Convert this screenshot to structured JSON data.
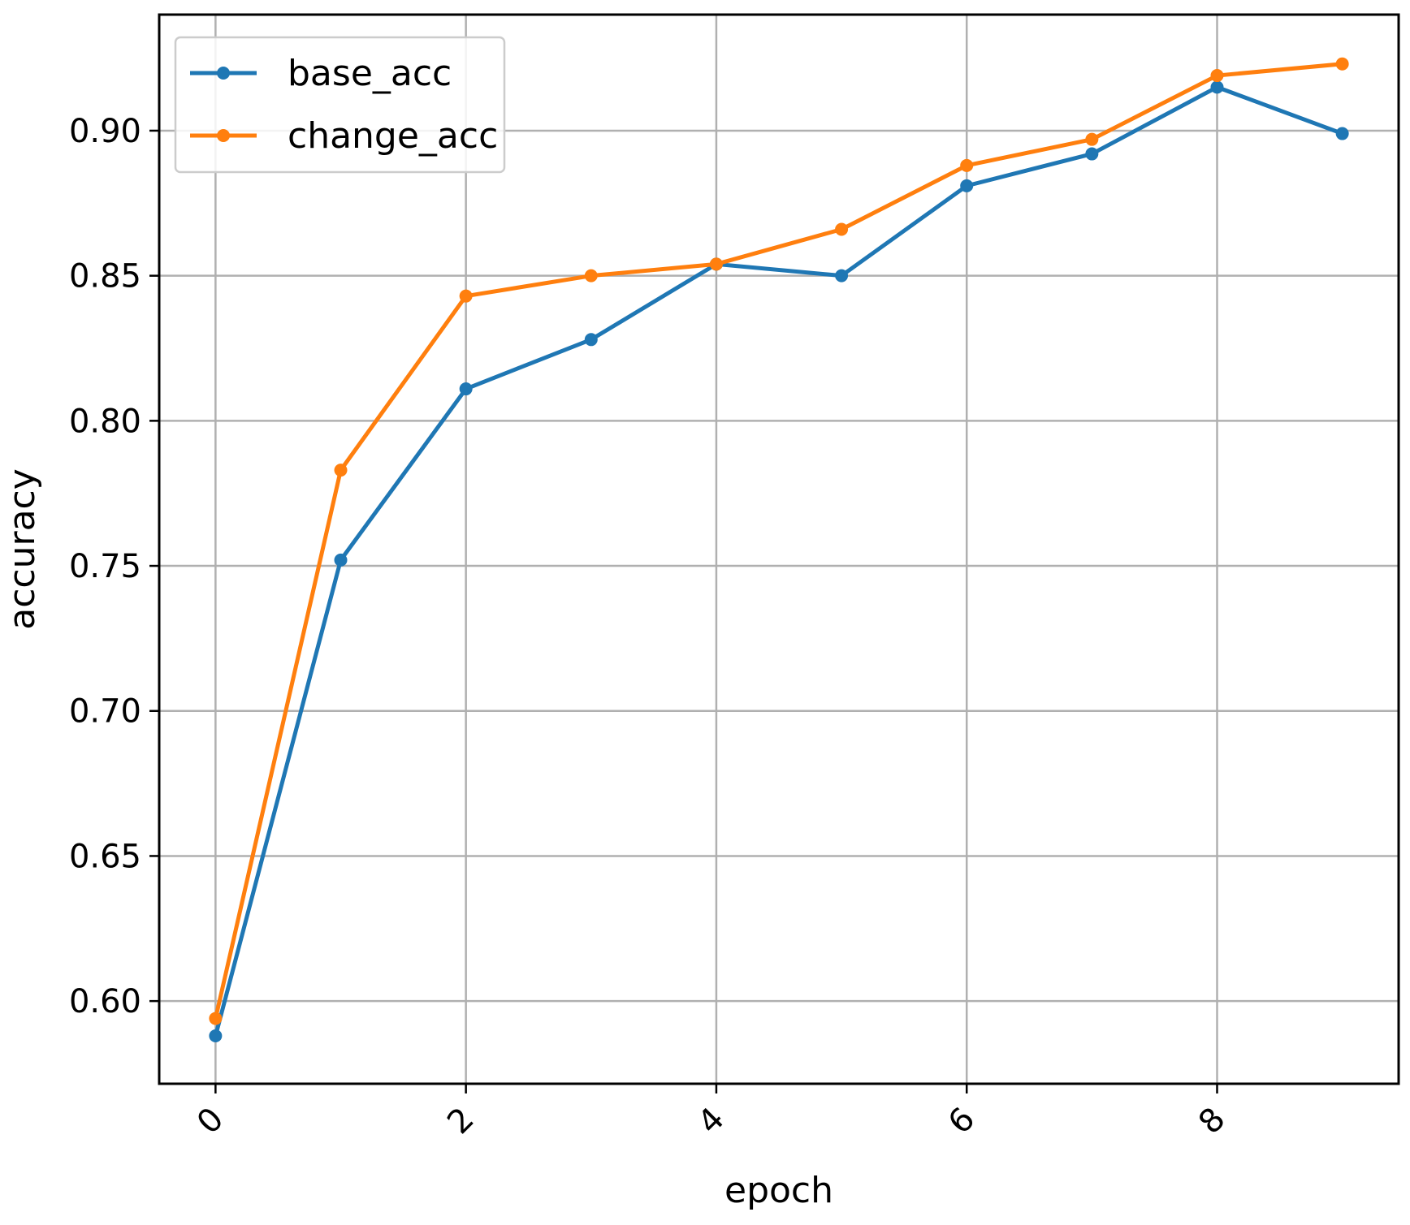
{
  "chart_data": {
    "type": "line",
    "title": "",
    "xlabel": "epoch",
    "ylabel": "accuracy",
    "x": [
      0,
      1,
      2,
      3,
      4,
      5,
      6,
      7,
      8,
      9
    ],
    "xlim": [
      -0.45,
      9.45
    ],
    "ylim": [
      0.5715,
      0.94
    ],
    "x_ticks": [
      "0",
      "2",
      "4",
      "6",
      "8"
    ],
    "x_tick_values": [
      0,
      2,
      4,
      6,
      8
    ],
    "x_tick_rotation": "45 degrees",
    "y_ticks": [
      "0.60",
      "0.65",
      "0.70",
      "0.75",
      "0.80",
      "0.85",
      "0.90"
    ],
    "y_tick_values": [
      0.6,
      0.65,
      0.7,
      0.75,
      0.8,
      0.85,
      0.9
    ],
    "grid": true,
    "legend": "top-left",
    "marker": "dot",
    "series": [
      {
        "name": "base_acc",
        "color": "#1f77b4",
        "values": [
          0.588,
          0.752,
          0.811,
          0.828,
          0.854,
          0.85,
          0.881,
          0.892,
          0.915,
          0.899
        ]
      },
      {
        "name": "change_acc",
        "color": "#ff7f0e",
        "values": [
          0.594,
          0.783,
          0.843,
          0.85,
          0.854,
          0.866,
          0.888,
          0.897,
          0.919,
          0.923
        ]
      }
    ]
  }
}
